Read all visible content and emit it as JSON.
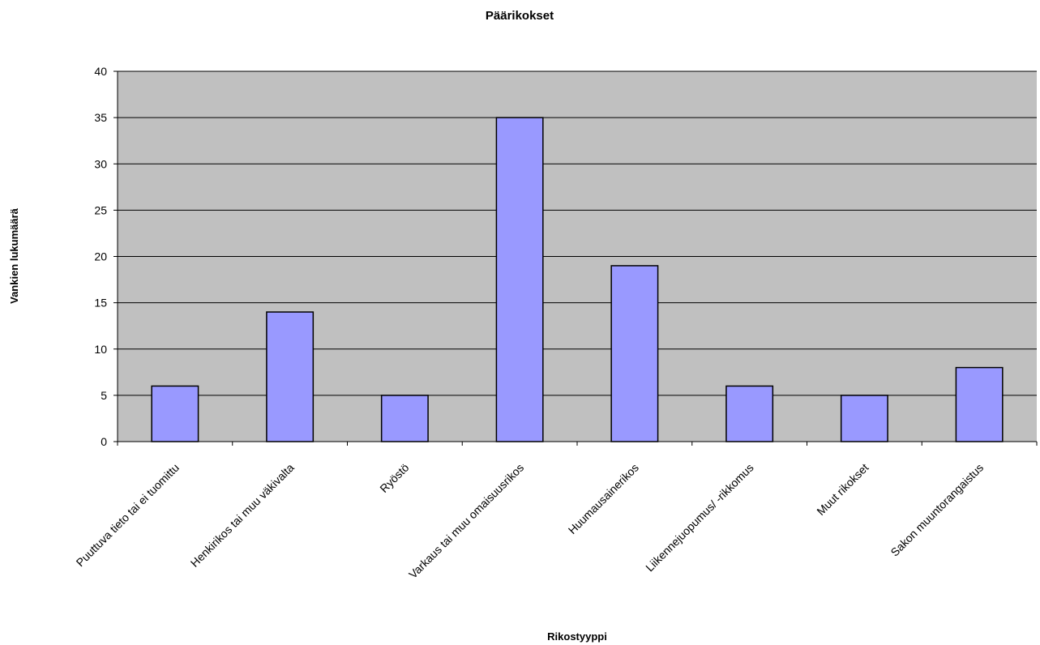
{
  "chart_data": {
    "type": "bar",
    "title": "Päärikokset",
    "xlabel": "Rikostyyppi",
    "ylabel": "Vankien lukumäärä",
    "categories": [
      "Puuttuva tieto tai ei tuomittu",
      "Henkirikos tai muu väkivalta",
      "Ryöstö",
      "Varkaus tai muu omaisuusrikos",
      "Huumausainerikos",
      "Liikennejuopumus/ -rikkomus",
      "Muut rikokset",
      "Sakon muuntorangaistus"
    ],
    "values": [
      6,
      14,
      5,
      35,
      19,
      6,
      5,
      8
    ],
    "ylim": [
      0,
      40
    ],
    "yticks": [
      0,
      5,
      10,
      15,
      20,
      25,
      30,
      35,
      40
    ],
    "grid": true,
    "legend": "none",
    "colors": {
      "bar_fill": "#9999ff",
      "bar_stroke": "#000000",
      "plot_bg": "#c0c0c0",
      "gridline": "#000000"
    }
  }
}
